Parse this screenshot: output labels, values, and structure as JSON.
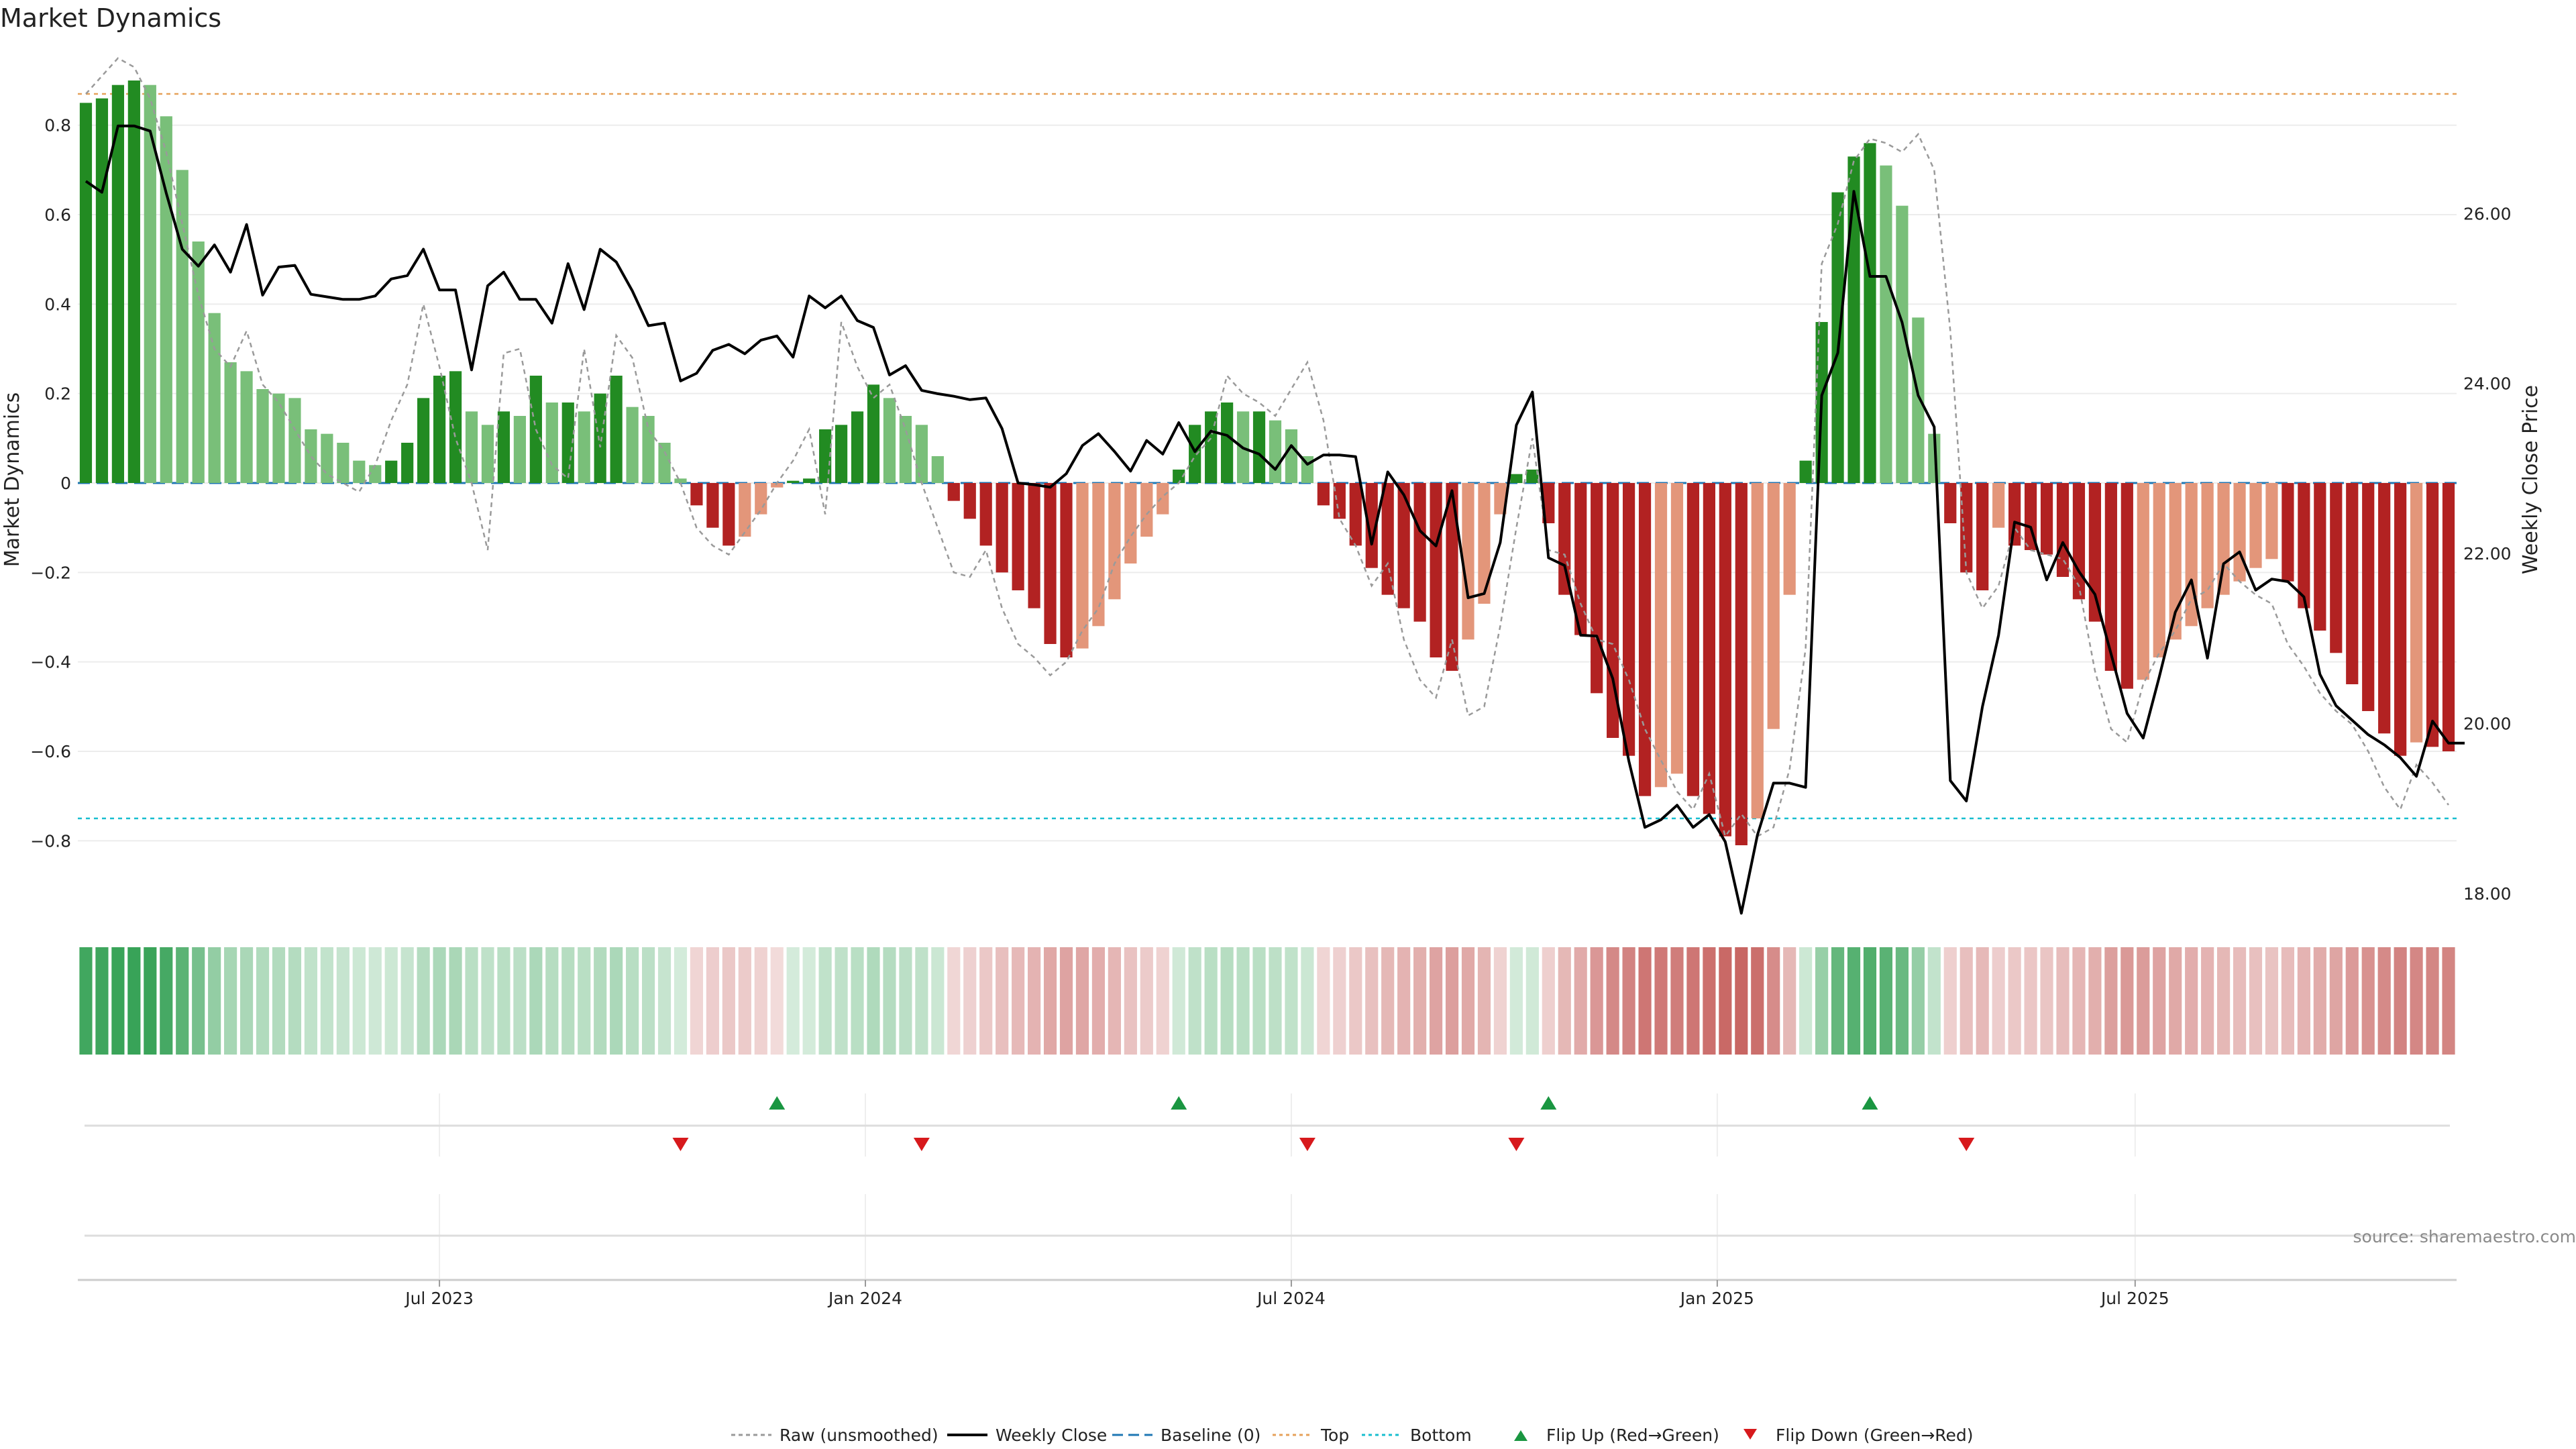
{
  "chart_data": {
    "type": "bar",
    "title": "Market Dynamics",
    "ylabel": "Market Dynamics",
    "y2label": "Weekly Close Price",
    "ylim": [
      -0.96,
      0.96
    ],
    "y2lim": [
      17.78,
      27.88
    ],
    "yticks": [
      "0.8",
      "0.6",
      "0.4",
      "0.2",
      "0",
      "−0.2",
      "−0.4",
      "−0.6",
      "−0.8"
    ],
    "ytick_values": [
      0.8,
      0.6,
      0.4,
      0.2,
      0,
      -0.2,
      -0.4,
      -0.6,
      -0.8
    ],
    "y2ticks": [
      "26.00",
      "24.00",
      "22.00",
      "20.00",
      "18.00"
    ],
    "y2tick_values": [
      26,
      24,
      22,
      20,
      18
    ],
    "xticks": [
      "Jul 2023",
      "Jan 2024",
      "Jul 2024",
      "Jan 2025",
      "Jul 2025"
    ],
    "xtick_index": [
      22,
      48.5,
      75,
      101.5,
      127.5
    ],
    "top_level": 0.87,
    "bottom_level": -0.75,
    "grid": true,
    "legend_position": "bottom-center",
    "values": [
      0.85,
      0.86,
      0.89,
      0.9,
      0.89,
      0.82,
      0.7,
      0.54,
      0.38,
      0.27,
      0.25,
      0.21,
      0.2,
      0.19,
      0.12,
      0.11,
      0.09,
      0.05,
      0.04,
      0.05,
      0.09,
      0.19,
      0.24,
      0.25,
      0.16,
      0.13,
      0.16,
      0.15,
      0.24,
      0.18,
      0.18,
      0.16,
      0.2,
      0.24,
      0.17,
      0.15,
      0.09,
      0.01,
      -0.05,
      -0.1,
      -0.14,
      -0.12,
      -0.07,
      -0.01,
      0.005,
      0.01,
      0.12,
      0.13,
      0.16,
      0.22,
      0.19,
      0.15,
      0.13,
      0.06,
      -0.04,
      -0.08,
      -0.14,
      -0.2,
      -0.24,
      -0.28,
      -0.36,
      -0.39,
      -0.37,
      -0.32,
      -0.26,
      -0.18,
      -0.12,
      -0.07,
      0.03,
      0.13,
      0.16,
      0.18,
      0.16,
      0.16,
      0.14,
      0.12,
      0.06,
      -0.05,
      -0.08,
      -0.14,
      -0.19,
      -0.25,
      -0.28,
      -0.31,
      -0.39,
      -0.42,
      -0.35,
      -0.27,
      -0.07,
      0.02,
      0.03,
      -0.09,
      -0.25,
      -0.34,
      -0.47,
      -0.57,
      -0.61,
      -0.7,
      -0.68,
      -0.65,
      -0.7,
      -0.74,
      -0.79,
      -0.81,
      -0.75,
      -0.55,
      -0.25,
      0.05,
      0.36,
      0.65,
      0.73,
      0.76,
      0.71,
      0.62,
      0.37,
      0.11,
      -0.09,
      -0.2,
      -0.24,
      -0.1,
      -0.14,
      -0.15,
      -0.16,
      -0.21,
      -0.26,
      -0.31,
      -0.42,
      -0.46,
      -0.44,
      -0.39,
      -0.35,
      -0.32,
      -0.28,
      -0.25,
      -0.22,
      -0.19,
      -0.17,
      -0.22,
      -0.28,
      -0.33,
      -0.38,
      -0.45,
      -0.51,
      -0.56,
      -0.61,
      -0.58,
      -0.59,
      -0.6
    ],
    "raw_values": [
      0.87,
      0.91,
      0.95,
      0.93,
      0.86,
      0.74,
      0.58,
      0.42,
      0.3,
      0.26,
      0.34,
      0.22,
      0.18,
      0.12,
      0.06,
      0.02,
      0.0,
      -0.02,
      0.04,
      0.14,
      0.22,
      0.4,
      0.26,
      0.1,
      0.0,
      -0.15,
      0.29,
      0.3,
      0.12,
      0.04,
      0.01,
      0.3,
      0.08,
      0.33,
      0.28,
      0.12,
      0.07,
      0.0,
      -0.1,
      -0.14,
      -0.16,
      -0.11,
      -0.06,
      0.0,
      0.05,
      0.12,
      -0.07,
      0.36,
      0.26,
      0.19,
      0.22,
      0.12,
      0.0,
      -0.1,
      -0.2,
      -0.21,
      -0.15,
      -0.28,
      -0.36,
      -0.39,
      -0.43,
      -0.4,
      -0.33,
      -0.28,
      -0.18,
      -0.12,
      -0.07,
      -0.03,
      0.0,
      0.06,
      0.1,
      0.24,
      0.2,
      0.18,
      0.15,
      0.21,
      0.27,
      0.14,
      -0.08,
      -0.14,
      -0.23,
      -0.18,
      -0.35,
      -0.44,
      -0.48,
      -0.35,
      -0.52,
      -0.5,
      -0.32,
      -0.1,
      0.1,
      -0.15,
      -0.16,
      -0.27,
      -0.35,
      -0.36,
      -0.44,
      -0.55,
      -0.62,
      -0.69,
      -0.73,
      -0.65,
      -0.79,
      -0.74,
      -0.79,
      -0.77,
      -0.64,
      -0.37,
      0.49,
      0.58,
      0.72,
      0.77,
      0.76,
      0.74,
      0.78,
      0.7,
      0.34,
      -0.2,
      -0.28,
      -0.23,
      -0.1,
      -0.15,
      -0.16,
      -0.17,
      -0.23,
      -0.42,
      -0.55,
      -0.58,
      -0.45,
      -0.38,
      -0.33,
      -0.26,
      -0.24,
      -0.18,
      -0.22,
      -0.25,
      -0.27,
      -0.36,
      -0.41,
      -0.47,
      -0.51,
      -0.54,
      -0.6,
      -0.68,
      -0.73,
      -0.63,
      -0.67,
      -0.72
    ],
    "weekly_close": [
      26.38,
      26.25,
      27.03,
      27.03,
      26.97,
      26.24,
      25.58,
      25.38,
      25.63,
      25.31,
      25.87,
      25.04,
      25.37,
      25.39,
      25.05,
      25.02,
      24.99,
      24.99,
      25.03,
      25.23,
      25.27,
      25.58,
      25.1,
      25.1,
      24.16,
      25.15,
      25.31,
      24.99,
      24.99,
      24.71,
      25.41,
      24.87,
      25.58,
      25.43,
      25.09,
      24.68,
      24.71,
      24.03,
      24.12,
      24.39,
      24.46,
      24.35,
      24.51,
      24.56,
      24.31,
      25.03,
      24.89,
      25.03,
      24.74,
      24.66,
      24.1,
      24.21,
      23.92,
      23.88,
      23.85,
      23.81,
      23.83,
      23.47,
      22.83,
      22.81,
      22.78,
      22.94,
      23.27,
      23.41,
      23.2,
      22.97,
      23.33,
      23.17,
      23.54,
      23.2,
      23.44,
      23.39,
      23.24,
      23.17,
      22.99,
      23.27,
      23.05,
      23.16,
      23.16,
      23.14,
      22.11,
      22.96,
      22.69,
      22.27,
      22.09,
      22.74,
      21.48,
      21.53,
      22.13,
      23.51,
      23.9,
      21.95,
      21.86,
      21.04,
      21.03,
      20.53,
      19.56,
      18.78,
      18.87,
      19.04,
      18.78,
      18.93,
      18.61,
      17.77,
      18.69,
      19.3,
      19.3,
      19.25,
      23.86,
      24.36,
      26.26,
      25.26,
      25.26,
      24.72,
      23.86,
      23.49,
      19.33,
      19.09,
      20.2,
      21.04,
      22.37,
      22.31,
      21.69,
      22.13,
      21.79,
      21.52,
      20.82,
      20.12,
      19.83,
      20.55,
      21.31,
      21.69,
      20.77,
      21.88,
      22.02,
      21.57,
      21.7,
      21.67,
      21.49,
      20.58,
      20.21,
      20.04,
      19.87,
      19.75,
      19.6,
      19.38,
      20.03,
      19.77,
      19.77
    ],
    "flip_up_index": [
      43,
      68,
      91,
      111
    ],
    "flip_down_index": [
      37,
      52,
      76,
      89,
      117
    ],
    "strip_color_scale": {
      "positive": "#2e9e4f",
      "negative": "#c0504d"
    },
    "colors": {
      "strong_positive": "#228b22",
      "weak_positive": "#79bf79",
      "strong_negative": "#b22222",
      "weak_negative": "#e3967a",
      "raw": "#9a9a9a",
      "weekly_close": "#000000",
      "baseline": "#1f77b4",
      "top": "#e6a15a",
      "bottom": "#17becf",
      "flip_up": "#1a9641",
      "flip_down": "#d7191c"
    },
    "legend": [
      {
        "key": "raw",
        "label": "Raw (unsmoothed)"
      },
      {
        "key": "weekly_close",
        "label": "Weekly Close"
      },
      {
        "key": "baseline",
        "label": "Baseline (0)"
      },
      {
        "key": "top",
        "label": "Top"
      },
      {
        "key": "bottom",
        "label": "Bottom"
      },
      {
        "key": "flip_up",
        "label": "Flip Up (Red→Green)"
      },
      {
        "key": "flip_down",
        "label": "Flip Down (Green→Red)"
      }
    ],
    "source": "source: sharemaestro.com"
  }
}
